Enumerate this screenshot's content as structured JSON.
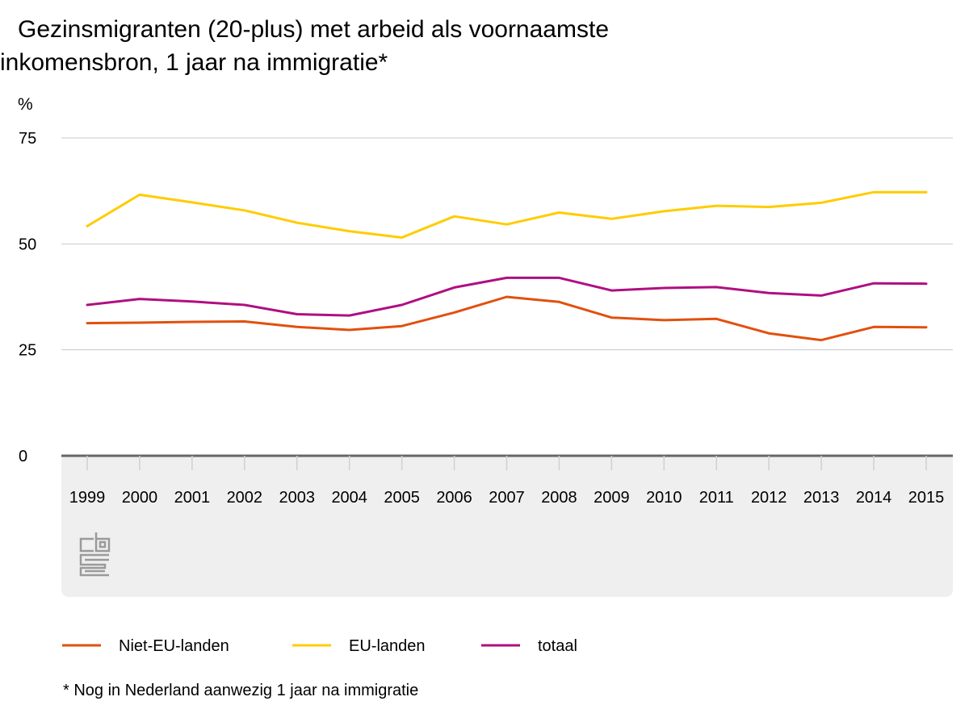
{
  "chart_data": {
    "type": "line",
    "title_lines": [
      "Gezinsmigranten (20-plus) met arbeid als voornaamste",
      "inkomensbron, 1 jaar na immigratie*"
    ],
    "unit": "%",
    "xlabel": "",
    "ylabel": "",
    "ylim": [
      0,
      75
    ],
    "yticks": [
      "0",
      "25",
      "50",
      "75"
    ],
    "grid": true,
    "legend_position": "bottom-left",
    "categories": [
      "1999",
      "2000",
      "2001",
      "2002",
      "2003",
      "2004",
      "2005",
      "2006",
      "2007",
      "2008",
      "2009",
      "2010",
      "2011",
      "2012",
      "2013",
      "2014",
      "2015"
    ],
    "series": [
      {
        "name": "Niet-EU-landen",
        "color": "#e1500e",
        "values": [
          31.3,
          31.4,
          31.6,
          31.7,
          30.4,
          29.7,
          30.6,
          33.8,
          37.5,
          36.3,
          32.6,
          32.0,
          32.3,
          28.9,
          27.3,
          30.4,
          30.3
        ]
      },
      {
        "name": "EU-landen",
        "color": "#ffcc00",
        "values": [
          54.2,
          61.6,
          59.8,
          57.9,
          55.0,
          53.0,
          51.5,
          56.5,
          54.6,
          57.4,
          55.9,
          57.7,
          59.0,
          58.7,
          59.7,
          62.2,
          62.2
        ]
      },
      {
        "name": "totaal",
        "color": "#af0f81",
        "values": [
          35.6,
          37.0,
          36.4,
          35.6,
          33.4,
          33.1,
          35.6,
          39.7,
          42.0,
          42.0,
          39.0,
          39.6,
          39.8,
          38.4,
          37.8,
          40.7,
          40.6
        ]
      }
    ],
    "footnote": "* Nog in Nederland aanwezig 1 jaar na immigratie"
  },
  "colors": {
    "grid": "#c8c8c8",
    "axis": "#666666",
    "panel": "#efefef",
    "logo": "#9a9a9a"
  },
  "logo": {
    "name": "cbs-logo-icon"
  }
}
